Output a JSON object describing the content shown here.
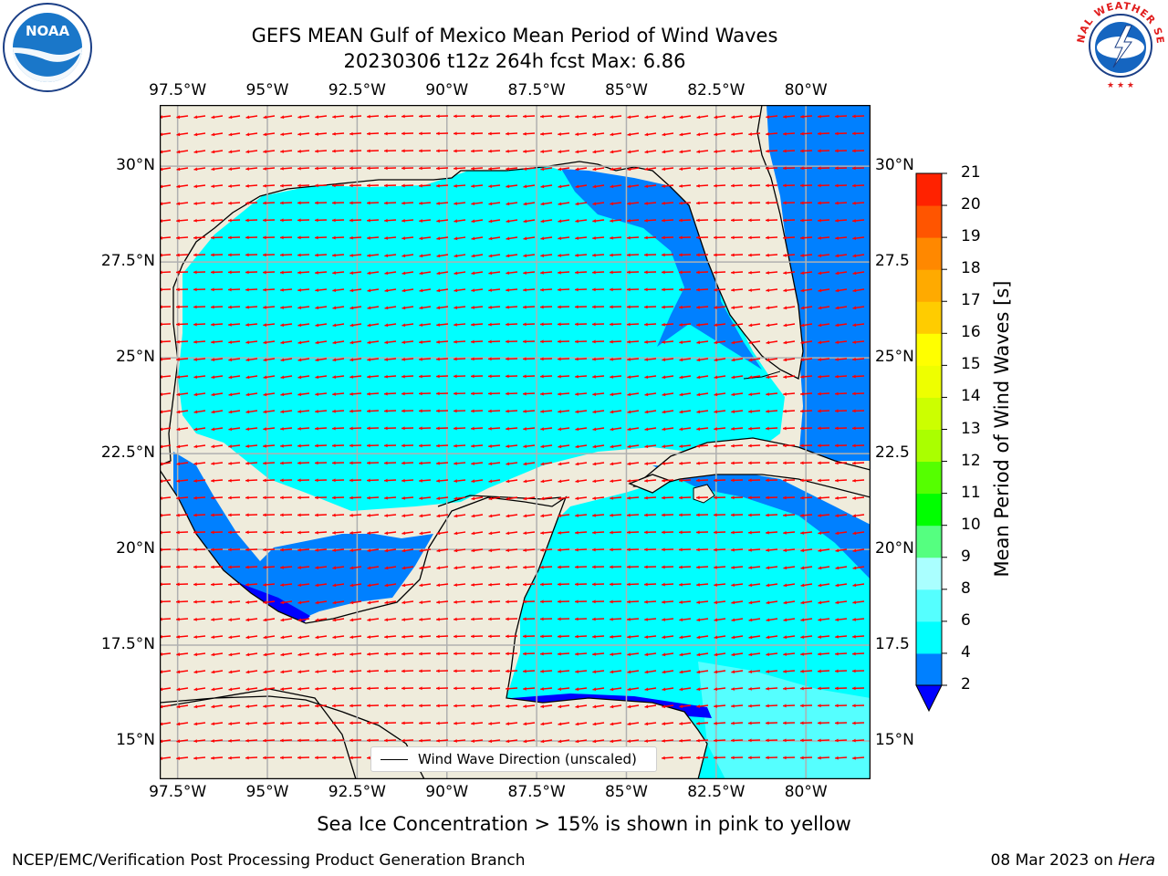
{
  "title": {
    "line1": "GEFS MEAN Gulf of Mexico Mean Period of Wind Waves",
    "line2": "20230306 t12z 264h fcst   Max: 6.86"
  },
  "logos": {
    "left": {
      "text": "NOAA",
      "ring_text": "NATIONAL OCEANIC AND ATMOSPHERIC ADMINISTRATION · U.S. DEPARTMENT OF COMMERCE"
    },
    "right": {
      "ring_text": "NATIONAL WEATHER SERVICE"
    }
  },
  "map": {
    "lon_labels": [
      "97.5°W",
      "95°W",
      "92.5°W",
      "90°W",
      "87.5°W",
      "85°W",
      "82.5°W",
      "80°W"
    ],
    "lon_values": [
      -97.5,
      -95,
      -92.5,
      -90,
      -87.5,
      -85,
      -82.5,
      -80
    ],
    "lat_labels_left": [
      "30°N",
      "27.5°N",
      "25°N",
      "22.5°N",
      "20°N",
      "17.5°N",
      "15°N"
    ],
    "lat_labels_right": [
      "30°N",
      "27.5",
      "25°N",
      "22.5",
      "20°N",
      "17.5",
      "15°N"
    ],
    "lat_values": [
      30,
      27.5,
      25,
      22.5,
      20,
      17.5,
      15
    ],
    "extent": {
      "lon_min": -98,
      "lon_max": -78.2,
      "lat_min": 14.0,
      "lat_max": 31.6
    },
    "land_color": "#efecdc",
    "field_colors": {
      "2-4": "#0080ff",
      "4-6": "#00ffff",
      "6-8": "#55ffff",
      "below-2": "#0000ff"
    },
    "vector_color": "#ff0000",
    "vector_direction": "mostly toward the west (easterly wind waves)"
  },
  "colorbar": {
    "label": "Mean Period of Wind Waves [s]",
    "ticks": [
      "2",
      "4",
      "6",
      "8",
      "9",
      "10",
      "11",
      "12",
      "13",
      "14",
      "15",
      "16",
      "17",
      "18",
      "19",
      "20",
      "21"
    ],
    "colors": [
      "#0080ff",
      "#00ffff",
      "#55ffff",
      "#aaffff",
      "#55ff80",
      "#00ff00",
      "#55ff00",
      "#aaff00",
      "#ccff00",
      "#eeff00",
      "#ffff00",
      "#ffcc00",
      "#ffaa00",
      "#ff8800",
      "#ff5500",
      "#ff2200",
      "#ff0000"
    ],
    "extend_min_color": "#0000ff"
  },
  "legend": {
    "label": "Wind Wave Direction (unscaled)"
  },
  "note": "Sea Ice Concentration > 15% is shown in pink to yellow",
  "footer": {
    "left": "NCEP/EMC/Verification Post Processing Product Generation Branch",
    "right_date": "08 Mar 2023 on ",
    "right_host": "Hera"
  }
}
